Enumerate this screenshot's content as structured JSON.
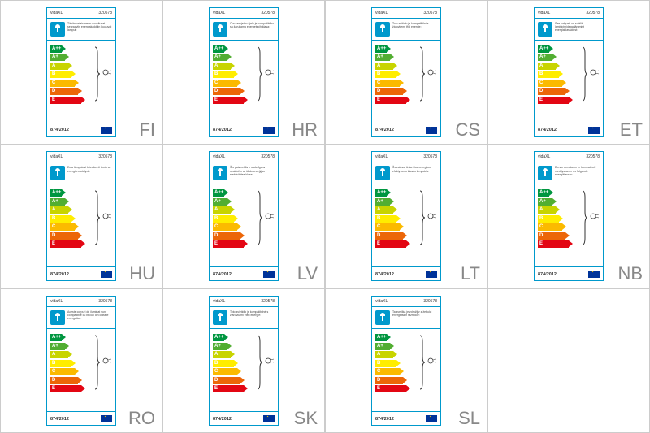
{
  "brand": "vidaXL",
  "model": "320578",
  "regulation": "874/2012",
  "energy_classes": [
    {
      "letter": "A++",
      "color": "#009640",
      "width": 14
    },
    {
      "letter": "A+",
      "color": "#52ae32",
      "width": 18
    },
    {
      "letter": "A",
      "color": "#c8d400",
      "width": 22
    },
    {
      "letter": "B",
      "color": "#ffed00",
      "width": 26
    },
    {
      "letter": "C",
      "color": "#fbba00",
      "width": 30
    },
    {
      "letter": "D",
      "color": "#ec6608",
      "width": 34
    },
    {
      "letter": "E",
      "color": "#e30613",
      "width": 38
    }
  ],
  "labels": [
    {
      "lang": "FI",
      "text": "Tähän valaisimeen soveltuvat seuraaviin energialuokkiin kuuluvat lamput:"
    },
    {
      "lang": "HR",
      "text": "Ovo rasvjetno tijelo je kompatibilno sa žaruljama energetskih klasa:"
    },
    {
      "lang": "CS",
      "text": "Toto svítidlo je kompatibilní s žárovkemi tříd energie:"
    },
    {
      "lang": "ET",
      "text": "See valgusti on sobilik lambipirnidega järgmist energiaklassidest:"
    },
    {
      "lang": "HU",
      "text": "Ez a lámpatest következő izzók az energia osztályok:"
    },
    {
      "lang": "LV",
      "text": "Šis gaismeklis ir saderīgs ar spuldzēm ar šādu enerģijas efektivitātes klase:"
    },
    {
      "lang": "LT",
      "text": "Šviestuvui tinka šios energijos efektyvumo klasės lemputės:"
    },
    {
      "lang": "NB",
      "text": "Denne armaturen er kompatibel med lyspærer av følgende energiklasser:"
    },
    {
      "lang": "RO",
      "text": "Aceste corpuri de iluminat sunt compatibile cu becuri din clasele energetice:"
    },
    {
      "lang": "SK",
      "text": "Toto svietidlo je kompatibilné s žiarovkami tried energie:"
    },
    {
      "lang": "SL",
      "text": "Ta svetilka je združljiv z žebulci energetskih razredov:"
    }
  ],
  "colors": {
    "border": "#0099cc",
    "lang_text": "#888888",
    "flag_bg": "#003399",
    "flag_star": "#ffcc00"
  }
}
